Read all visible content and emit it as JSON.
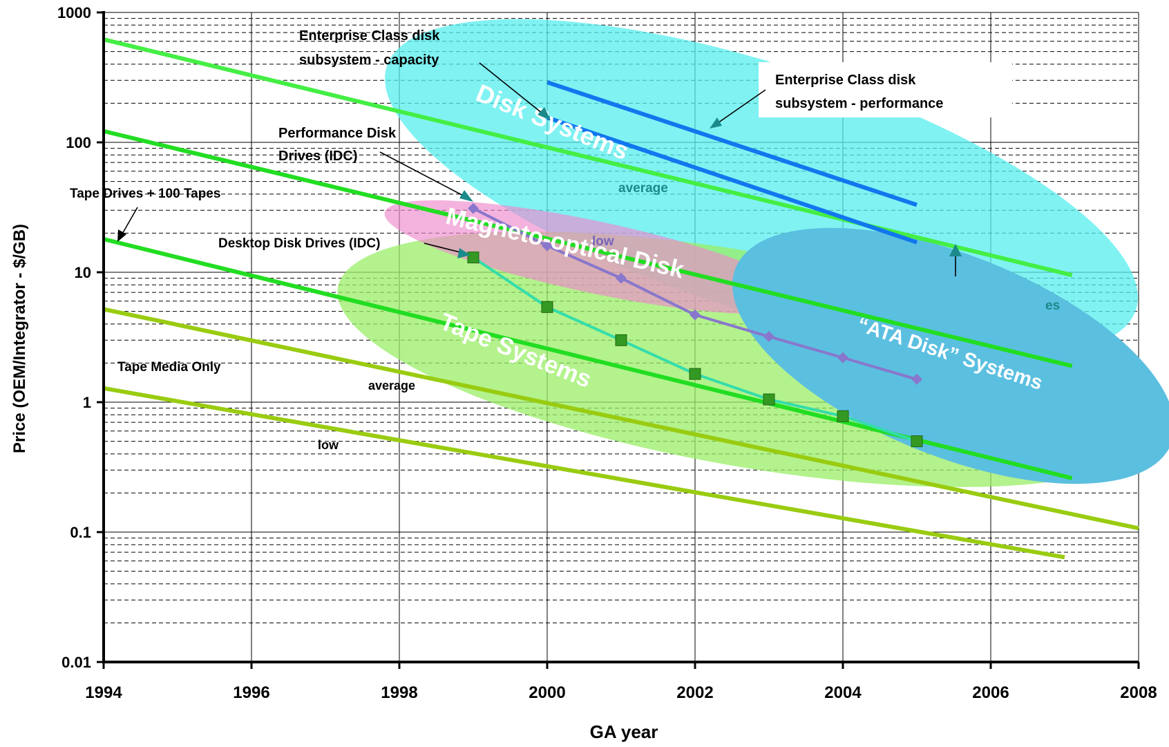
{
  "chart_data": {
    "type": "line",
    "log_y": true,
    "xlabel": "GA year",
    "ylabel": "Price (OEM/Integrator - $/GB)",
    "xlim": [
      1994,
      2008
    ],
    "ylim": [
      0.01,
      1000
    ],
    "x_ticks": [
      "1994",
      "1996",
      "1998",
      "2000",
      "2002",
      "2004",
      "2006",
      "2008"
    ],
    "y_ticks": [
      "0.01",
      "0.1",
      "1",
      "10",
      "100",
      "1000"
    ],
    "grid": "major and minor on log axis",
    "regions": [
      {
        "label": "Disk Systems",
        "color": "#55eeee"
      },
      {
        "label": "Tape Systems",
        "color": "#99ee66"
      },
      {
        "label": "Magneto-optical Disk",
        "color": "#ee88cc"
      },
      {
        "label": "“ATA Disk” Systems",
        "color": "#5bbfe0"
      }
    ],
    "series": [
      {
        "points": [
          [
            1994,
            620
          ],
          [
            2007.1,
            9.5
          ]
        ],
        "color": "#44ee44"
      },
      {
        "points": [
          [
            1994,
            122
          ],
          [
            2007.1,
            1.9
          ]
        ],
        "color": "#22dd22"
      },
      {
        "points": [
          [
            1994,
            18
          ],
          [
            2007.1,
            0.26
          ]
        ],
        "color": "#22dd22"
      },
      {
        "points": [
          [
            1994,
            5.2
          ],
          [
            2008,
            0.107
          ]
        ],
        "color": "#99cc11"
      },
      {
        "points": [
          [
            1994,
            1.28
          ],
          [
            2007,
            0.064
          ]
        ],
        "color": "#99cc11"
      },
      {
        "points": [
          [
            2000,
            155
          ],
          [
            2005,
            17
          ]
        ],
        "color": "#1177ee"
      },
      {
        "points": [
          [
            2000,
            290
          ],
          [
            2005,
            33
          ]
        ],
        "color": "#1177ee"
      },
      {
        "points": [
          [
            1999,
            31
          ],
          [
            2000,
            16
          ],
          [
            2001,
            9
          ],
          [
            2002,
            4.7
          ],
          [
            2003,
            3.2
          ],
          [
            2004,
            2.2
          ],
          [
            2005,
            1.5
          ]
        ],
        "color": "#8877cc",
        "marker": "diamond"
      },
      {
        "points": [
          [
            1999,
            13
          ],
          [
            2000,
            5.4
          ],
          [
            2001,
            3.0
          ],
          [
            2002,
            1.65
          ],
          [
            2003,
            1.05
          ],
          [
            2004,
            0.78
          ],
          [
            2005,
            0.5
          ]
        ],
        "color": "#33ddaa",
        "marker": "square"
      }
    ],
    "annotations": [
      "Enterprise Class disk subsystem - capacity",
      "Enterprise Class disk subsystem - performance",
      "Performance Disk Drives (IDC)",
      "Desktop Disk Drives (IDC)",
      "Tape Drives + 100 Tapes",
      "Tape Media Only",
      "average",
      "low",
      "average",
      "low",
      "es"
    ]
  },
  "labels": {
    "ent_cap_1": "Enterprise Class disk",
    "ent_cap_2": "subsystem - capacity",
    "ent_perf_1": "Enterprise Class disk",
    "ent_perf_2": "subsystem - performance",
    "perf_disk_1": "Performance Disk",
    "perf_disk_2": "Drives (IDC)",
    "desktop": "Desktop Disk Drives (IDC)",
    "tape_drives": "Tape Drives + 100 Tapes",
    "tape_media": "Tape Media Only",
    "disk_avg": "average",
    "disk_low": "low",
    "tape_avg": "average",
    "tape_low": "low",
    "partial_es": "es"
  }
}
